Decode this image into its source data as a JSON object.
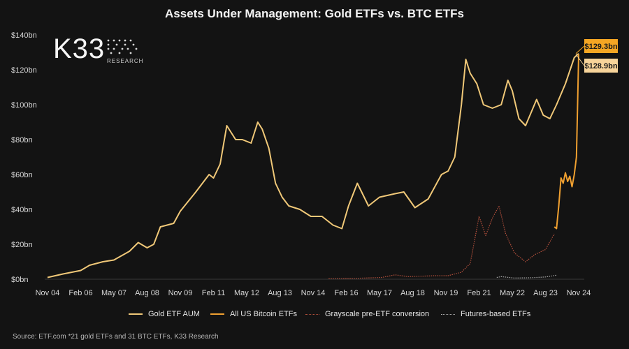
{
  "chart_data": {
    "type": "line",
    "title": "Assets Under Management: Gold ETFs vs. BTC ETFs",
    "ylim": [
      0,
      140
    ],
    "y_ticks": [
      "$0bn",
      "$20bn",
      "$40bn",
      "$60bn",
      "$80bn",
      "$100bn",
      "$120bn",
      "$140bn"
    ],
    "y_tick_values": [
      0,
      20,
      40,
      60,
      80,
      100,
      120,
      140
    ],
    "x_ticks": [
      "Nov 04",
      "Feb 06",
      "May 07",
      "Aug 08",
      "Nov 09",
      "Feb 11",
      "May 12",
      "Aug 13",
      "Nov 14",
      "Feb 16",
      "May 17",
      "Aug 18",
      "Nov 19",
      "Feb 21",
      "May 22",
      "Aug 23",
      "Nov 24"
    ],
    "x_range": [
      "2004-11",
      "2024-11"
    ],
    "grid": false,
    "legend_position": "bottom",
    "series": [
      {
        "name": "Gold ETF AUM",
        "color": "#f0c878",
        "style": "solid",
        "points": [
          [
            "2004-11",
            1
          ],
          [
            "2005-06",
            3
          ],
          [
            "2006-02",
            5
          ],
          [
            "2006-06",
            8
          ],
          [
            "2006-12",
            10
          ],
          [
            "2007-05",
            11
          ],
          [
            "2007-12",
            16
          ],
          [
            "2008-04",
            21
          ],
          [
            "2008-08",
            18
          ],
          [
            "2008-11",
            20
          ],
          [
            "2009-02",
            30
          ],
          [
            "2009-08",
            32
          ],
          [
            "2009-11",
            39
          ],
          [
            "2010-06",
            50
          ],
          [
            "2010-12",
            60
          ],
          [
            "2011-02",
            58
          ],
          [
            "2011-05",
            66
          ],
          [
            "2011-08",
            88
          ],
          [
            "2011-12",
            80
          ],
          [
            "2012-03",
            80
          ],
          [
            "2012-07",
            78
          ],
          [
            "2012-10",
            90
          ],
          [
            "2012-12",
            86
          ],
          [
            "2013-03",
            75
          ],
          [
            "2013-06",
            55
          ],
          [
            "2013-09",
            47
          ],
          [
            "2013-12",
            42
          ],
          [
            "2014-05",
            40
          ],
          [
            "2014-10",
            36
          ],
          [
            "2015-03",
            36
          ],
          [
            "2015-08",
            31
          ],
          [
            "2015-12",
            29
          ],
          [
            "2016-03",
            42
          ],
          [
            "2016-07",
            55
          ],
          [
            "2016-12",
            42
          ],
          [
            "2017-05",
            47
          ],
          [
            "2017-12",
            49
          ],
          [
            "2018-04",
            50
          ],
          [
            "2018-09",
            41
          ],
          [
            "2019-03",
            46
          ],
          [
            "2019-09",
            60
          ],
          [
            "2019-12",
            62
          ],
          [
            "2020-03",
            70
          ],
          [
            "2020-06",
            100
          ],
          [
            "2020-08",
            126
          ],
          [
            "2020-10",
            118
          ],
          [
            "2021-01",
            112
          ],
          [
            "2021-04",
            100
          ],
          [
            "2021-08",
            98
          ],
          [
            "2021-12",
            100
          ],
          [
            "2022-03",
            114
          ],
          [
            "2022-05",
            108
          ],
          [
            "2022-08",
            92
          ],
          [
            "2022-11",
            88
          ],
          [
            "2023-04",
            103
          ],
          [
            "2023-07",
            94
          ],
          [
            "2023-10",
            92
          ],
          [
            "2024-01",
            100
          ],
          [
            "2024-05",
            112
          ],
          [
            "2024-09",
            127
          ],
          [
            "2024-11",
            129.3
          ]
        ]
      },
      {
        "name": "All US Bitcoin ETFs",
        "color": "#f0a030",
        "style": "solid",
        "points": [
          [
            "2023-12",
            30
          ],
          [
            "2024-01",
            29
          ],
          [
            "2024-02",
            42
          ],
          [
            "2024-03",
            58
          ],
          [
            "2024-04",
            55
          ],
          [
            "2024-05",
            61
          ],
          [
            "2024-06",
            56
          ],
          [
            "2024-07",
            59
          ],
          [
            "2024-08",
            53
          ],
          [
            "2024-09",
            60
          ],
          [
            "2024-10",
            70
          ],
          [
            "2024-11",
            128.9
          ]
        ]
      },
      {
        "name": "Grayscale pre-ETF conversion",
        "color": "#b4503c",
        "style": "dotted",
        "points": [
          [
            "2015-06",
            0.3
          ],
          [
            "2016-06",
            0.5
          ],
          [
            "2017-06",
            1
          ],
          [
            "2017-12",
            2.5
          ],
          [
            "2018-06",
            1.5
          ],
          [
            "2019-06",
            2
          ],
          [
            "2019-12",
            2
          ],
          [
            "2020-06",
            4
          ],
          [
            "2020-10",
            9
          ],
          [
            "2021-02",
            36
          ],
          [
            "2021-05",
            25
          ],
          [
            "2021-08",
            35
          ],
          [
            "2021-11",
            42
          ],
          [
            "2022-02",
            26
          ],
          [
            "2022-06",
            15
          ],
          [
            "2022-11",
            10
          ],
          [
            "2023-03",
            14
          ],
          [
            "2023-08",
            17
          ],
          [
            "2023-12",
            26
          ]
        ]
      },
      {
        "name": "Futures-based ETFs",
        "color": "#a8a8a8",
        "style": "dotted",
        "points": [
          [
            "2021-10",
            1
          ],
          [
            "2021-12",
            1.5
          ],
          [
            "2022-06",
            0.7
          ],
          [
            "2023-01",
            0.8
          ],
          [
            "2023-08",
            1.3
          ],
          [
            "2024-01",
            2.3
          ]
        ]
      }
    ],
    "annotations": [
      {
        "label": "$129.3bn",
        "value": 129.3,
        "color": "#f5a623"
      },
      {
        "label": "$128.9bn",
        "value": 128.9,
        "color": "#f7d49a"
      }
    ]
  },
  "brand": {
    "logo_text": "K33",
    "logo_sub": "RESEARCH"
  },
  "footer": {
    "source": "Source: ETF.com *21 gold ETFs and 31 BTC ETFs, K33 Research"
  }
}
